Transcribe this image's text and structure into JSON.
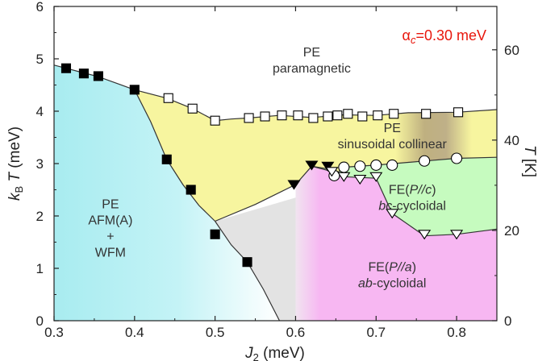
{
  "chart_data": {
    "type": "scatter",
    "title": "",
    "xlabel": "J2 (meV)",
    "ylabel_left": "kBT (meV)",
    "ylabel_right": "T [K]",
    "xlim": [
      0.3,
      0.85
    ],
    "ylim": [
      0,
      6
    ],
    "ylim_right_K": [
      0,
      69.6
    ],
    "x_ticks": [
      0.3,
      0.4,
      0.5,
      0.6,
      0.7,
      0.8
    ],
    "x_tick_labels": [
      "0.3",
      "0.4",
      "0.5",
      "0.6",
      "0.7",
      "0.8"
    ],
    "y_ticks": [
      0,
      1,
      2,
      3,
      4,
      5,
      6
    ],
    "y_tick_labels": [
      "0",
      "1",
      "2",
      "3",
      "4",
      "5",
      "6"
    ],
    "y_right_ticks": [
      0,
      20,
      40,
      60
    ],
    "y_right_tick_labels": [
      "0",
      "20",
      "40",
      "60"
    ],
    "annotation": {
      "symbol": "α",
      "subscript": "c",
      "text": "=0.30 meV",
      "color": "#e8160c"
    },
    "region_colors": {
      "afm": "#a8ecf0",
      "sinusoidal": "#f7f59f",
      "cross_over": "#e3e3e3",
      "ab_cycloidal": "#f7b7f2",
      "bc_cycloidal": "#c6fbbf",
      "paramagnetic": "#ffffff"
    },
    "regions": [
      {
        "id": "pe-paramagnetic",
        "lines": [
          "PE",
          "paramagnetic"
        ],
        "x": 0.62,
        "y": 5.05
      },
      {
        "id": "pe-afm",
        "lines": [
          "PE",
          "AFM(A)",
          "+",
          "WFM"
        ],
        "x": 0.37,
        "y": 2.15
      },
      {
        "id": "pe-sinusoidal",
        "lines": [
          "PE",
          "sinusoidal collinear"
        ],
        "x": 0.72,
        "y": 3.6
      },
      {
        "id": "fe-bc",
        "lines": [
          "FE(P//c)",
          "bc-cycloidal"
        ],
        "x": 0.745,
        "y": 2.42
      },
      {
        "id": "fe-ab",
        "lines": [
          "FE(P//a)",
          "ab-cycloidal"
        ],
        "x": 0.72,
        "y": 0.95
      }
    ],
    "series": [
      {
        "name": "filled squares",
        "marker": "square-filled",
        "x": [
          0.315,
          0.337,
          0.355,
          0.4,
          0.44,
          0.47,
          0.5,
          0.54
        ],
        "y": [
          4.82,
          4.72,
          4.67,
          4.41,
          3.08,
          2.5,
          1.65,
          1.12
        ]
      },
      {
        "name": "open squares",
        "marker": "square-open",
        "x": [
          0.442,
          0.472,
          0.5,
          0.542,
          0.562,
          0.583,
          0.603,
          0.622,
          0.64,
          0.652,
          0.665,
          0.683,
          0.702,
          0.722,
          0.762,
          0.802
        ],
        "y": [
          4.25,
          4.05,
          3.82,
          3.87,
          3.9,
          3.92,
          3.92,
          3.87,
          3.9,
          3.92,
          3.95,
          3.9,
          3.92,
          3.95,
          3.95,
          3.98
        ]
      },
      {
        "name": "filled triangles",
        "marker": "triangle-down-filled",
        "x": [
          0.598,
          0.62,
          0.64
        ],
        "y": [
          2.6,
          2.97,
          2.95
        ]
      },
      {
        "name": "open circles",
        "marker": "circle-open",
        "x": [
          0.648,
          0.66,
          0.68,
          0.7,
          0.72,
          0.76,
          0.8
        ],
        "y": [
          2.77,
          2.93,
          2.95,
          2.97,
          2.97,
          3.05,
          3.1
        ]
      },
      {
        "name": "open triangles",
        "marker": "triangle-down-open",
        "x": [
          0.645,
          0.66,
          0.68,
          0.7,
          0.72,
          0.76,
          0.8
        ],
        "y": [
          2.85,
          2.75,
          2.7,
          2.75,
          2.05,
          1.65,
          1.65
        ]
      }
    ]
  }
}
